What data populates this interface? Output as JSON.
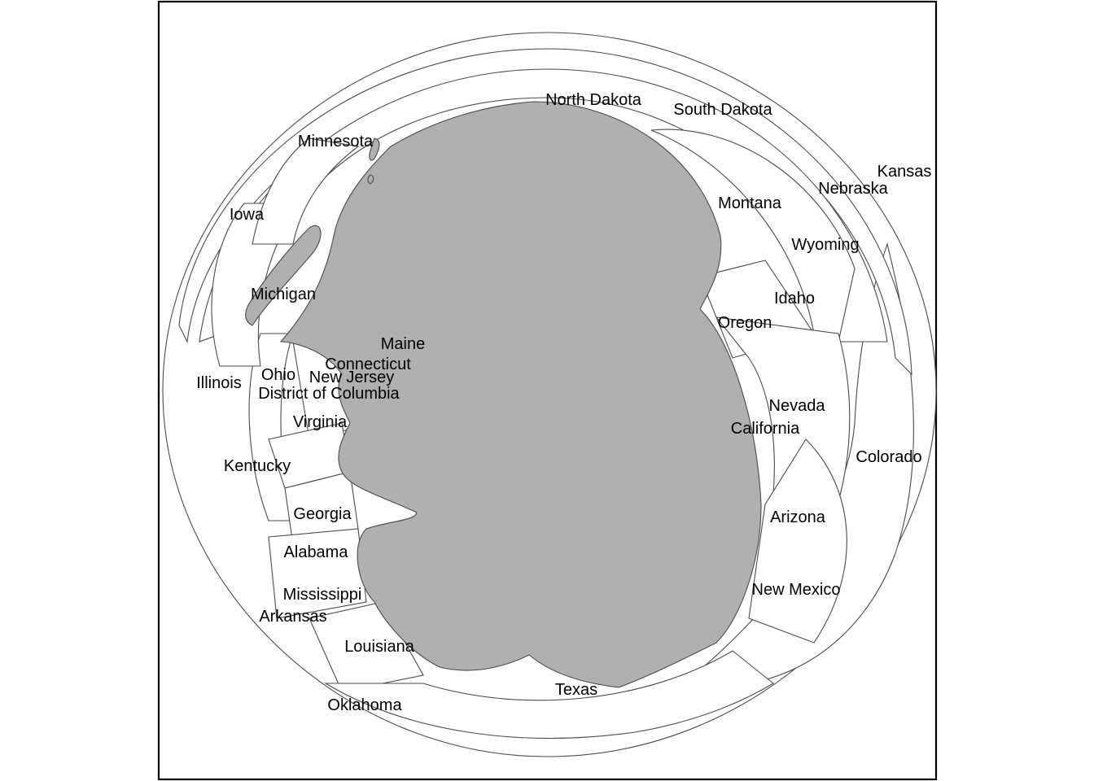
{
  "map": {
    "water_color": "#b0b0b0",
    "land_color": "#ffffff",
    "border_color": "#4a4a4a",
    "labels": [
      "North Dakota",
      "South Dakota",
      "Kansas",
      "Nebraska",
      "Minnesota",
      "Iowa",
      "Montana",
      "Wyoming",
      "Michigan",
      "Idaho",
      "Oregon",
      "Maine",
      "Connecticut",
      "Ohio",
      "New Jersey",
      "Illinois",
      "District of Columbia",
      "Nevada",
      "Virginia",
      "California",
      "Kentucky",
      "Colorado",
      "Georgia",
      "Arizona",
      "Alabama",
      "New Mexico",
      "Mississippi",
      "Arkansas",
      "Louisiana",
      "Texas",
      "Oklahoma"
    ]
  }
}
